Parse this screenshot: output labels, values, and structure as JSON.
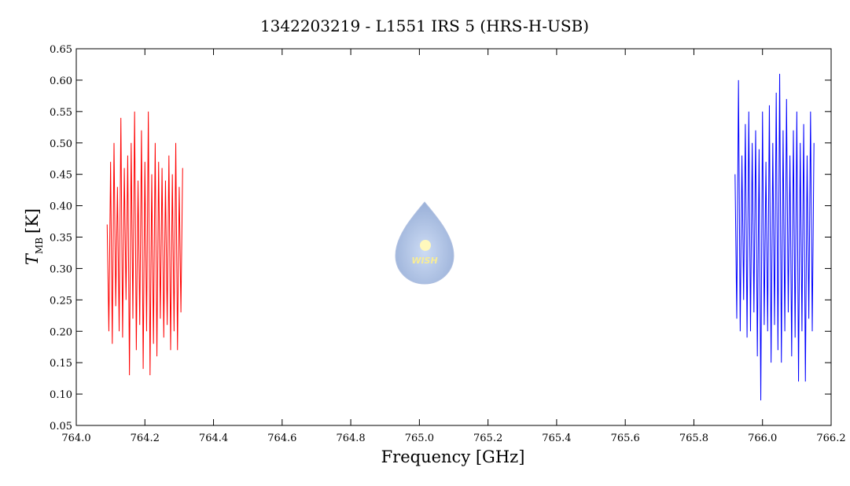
{
  "chart_data": {
    "type": "line",
    "title": "1342203219 - L1551 IRS 5 (HRS-H-USB)",
    "xlabel": "Frequency [GHz]",
    "ylabel": {
      "symbol": "T",
      "subscript": "MB",
      "unit": "[K]"
    },
    "watermark": "WISH",
    "xlim": [
      764.0,
      766.2
    ],
    "xticks": [
      {
        "value": 764,
        "label": "764.0"
      },
      764.2,
      764.4,
      764.6,
      764.8,
      {
        "value": 765,
        "label": "765.0"
      },
      765.2,
      765.4,
      765.6,
      765.8,
      {
        "value": 766,
        "label": "766.0"
      },
      766.2
    ],
    "ylim": [
      0.05,
      0.65
    ],
    "yticks": [
      0.05,
      {
        "value": 0.1,
        "label": "0.10"
      },
      0.15,
      {
        "value": 0.2,
        "label": "0.20"
      },
      0.25,
      {
        "value": 0.3,
        "label": "0.30"
      },
      0.35,
      {
        "value": 0.4,
        "label": "0.40"
      },
      0.45,
      {
        "value": 0.5,
        "label": "0.50"
      },
      0.55,
      {
        "value": 0.6,
        "label": "0.60"
      },
      0.65
    ],
    "series": [
      {
        "color": "#ff0000",
        "x": [
          764.09,
          764.095,
          764.1,
          764.105,
          764.11,
          764.115,
          764.12,
          764.125,
          764.13,
          764.135,
          764.14,
          764.145,
          764.15,
          764.155,
          764.16,
          764.165,
          764.17,
          764.175,
          764.18,
          764.185,
          764.19,
          764.195,
          764.2,
          764.205,
          764.21,
          764.215,
          764.22,
          764.225,
          764.23,
          764.235,
          764.24,
          764.245,
          764.25,
          764.255,
          764.26,
          764.265,
          764.27,
          764.275,
          764.28,
          764.285,
          764.29,
          764.295,
          764.3,
          764.305,
          764.31
        ],
        "values": [
          0.37,
          0.2,
          0.47,
          0.18,
          0.5,
          0.24,
          0.43,
          0.2,
          0.54,
          0.19,
          0.46,
          0.25,
          0.48,
          0.13,
          0.5,
          0.22,
          0.55,
          0.17,
          0.44,
          0.21,
          0.52,
          0.14,
          0.47,
          0.2,
          0.55,
          0.13,
          0.45,
          0.18,
          0.5,
          0.16,
          0.47,
          0.22,
          0.46,
          0.19,
          0.44,
          0.21,
          0.48,
          0.17,
          0.45,
          0.2,
          0.5,
          0.17,
          0.43,
          0.23,
          0.46
        ]
      },
      {
        "color": "#0000ff",
        "x": [
          765.92,
          765.925,
          765.93,
          765.935,
          765.94,
          765.945,
          765.95,
          765.955,
          765.96,
          765.965,
          765.97,
          765.975,
          765.98,
          765.985,
          765.99,
          765.995,
          766,
          766.005,
          766.01,
          766.015,
          766.02,
          766.025,
          766.03,
          766.035,
          766.04,
          766.045,
          766.05,
          766.055,
          766.06,
          766.065,
          766.07,
          766.075,
          766.08,
          766.085,
          766.09,
          766.095,
          766.1,
          766.105,
          766.11,
          766.115,
          766.12,
          766.125,
          766.13,
          766.135,
          766.14,
          766.145,
          766.15
        ],
        "values": [
          0.45,
          0.22,
          0.6,
          0.2,
          0.48,
          0.25,
          0.53,
          0.19,
          0.55,
          0.2,
          0.5,
          0.23,
          0.52,
          0.16,
          0.49,
          0.09,
          0.55,
          0.21,
          0.47,
          0.2,
          0.56,
          0.15,
          0.5,
          0.21,
          0.58,
          0.17,
          0.61,
          0.15,
          0.52,
          0.2,
          0.57,
          0.23,
          0.48,
          0.16,
          0.52,
          0.19,
          0.55,
          0.12,
          0.5,
          0.2,
          0.53,
          0.12,
          0.48,
          0.22,
          0.55,
          0.2,
          0.5
        ]
      }
    ]
  }
}
